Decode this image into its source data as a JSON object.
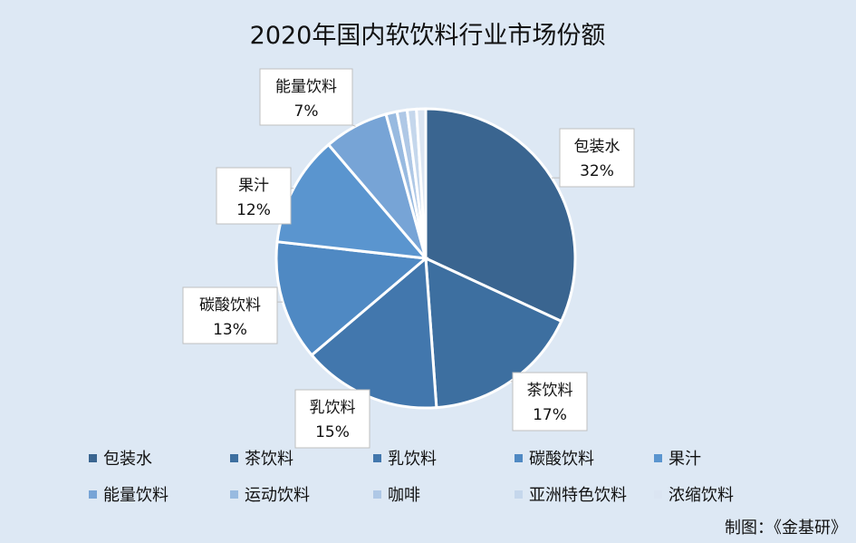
{
  "chart_data": {
    "type": "pie",
    "title": "2020年国内软饮料行业市场份额",
    "slices": [
      {
        "name": "包装水",
        "value": 32,
        "label": "32%",
        "color": "#3a6590"
      },
      {
        "name": "茶饮料",
        "value": 17,
        "label": "17%",
        "color": "#3d6fa0"
      },
      {
        "name": "乳饮料",
        "value": 15,
        "label": "15%",
        "color": "#4277ad"
      },
      {
        "name": "碳酸饮料",
        "value": 13,
        "label": "13%",
        "color": "#4f89c3"
      },
      {
        "name": "果汁",
        "value": 12,
        "label": "12%",
        "color": "#5a95cf"
      },
      {
        "name": "能量饮料",
        "value": 7,
        "label": "7%",
        "color": "#77a4d6"
      },
      {
        "name": "运动饮料",
        "value": 1.2,
        "color": "#98bae0"
      },
      {
        "name": "咖啡",
        "value": 1.1,
        "color": "#afc8e6"
      },
      {
        "name": "亚洲特色饮料",
        "value": 1.0,
        "color": "#c5d7ec"
      },
      {
        "name": "浓缩饮料",
        "value": 1.0,
        "color": "#dbe5f2"
      }
    ],
    "legend_position": "bottom"
  },
  "credit": "制图：《金基研》"
}
